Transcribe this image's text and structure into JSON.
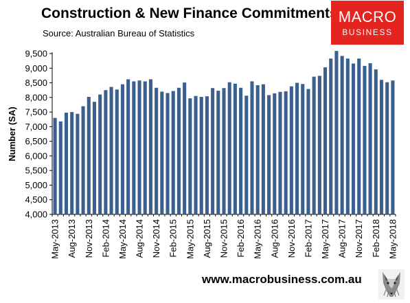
{
  "header": {
    "title": "Construction & New Finance Commitments",
    "source": "Source: Australian Bureau of Statistics"
  },
  "logo": {
    "line1": "MACRO",
    "line2": "BUSINESS"
  },
  "footer": {
    "url": "www.macrobusiness.com.au"
  },
  "colors": {
    "bar": "#3b5f8e",
    "logo_bg": "#e3241f"
  },
  "chart_data": {
    "type": "bar",
    "title": "Construction & New Finance Commitments",
    "ylabel": "Number (SA)",
    "xlabel": "",
    "ylim": [
      4000,
      9500
    ],
    "yticks": [
      4000,
      4500,
      5000,
      5500,
      6000,
      6500,
      7000,
      7500,
      8000,
      8500,
      9000,
      9500
    ],
    "ytick_labels": [
      "4,000",
      "4,500",
      "5,000",
      "5,500",
      "6,000",
      "6,500",
      "7,000",
      "7,500",
      "8,000",
      "8,500",
      "9,000",
      "9,500"
    ],
    "grid": false,
    "categories": [
      "May-2013",
      "Jun-2013",
      "Jul-2013",
      "Aug-2013",
      "Sep-2013",
      "Oct-2013",
      "Nov-2013",
      "Dec-2013",
      "Jan-2014",
      "Feb-2014",
      "Mar-2014",
      "Apr-2014",
      "May-2014",
      "Jun-2014",
      "Jul-2014",
      "Aug-2014",
      "Sep-2014",
      "Oct-2014",
      "Nov-2014",
      "Dec-2014",
      "Jan-2015",
      "Feb-2015",
      "Mar-2015",
      "Apr-2015",
      "May-2015",
      "Jun-2015",
      "Jul-2015",
      "Aug-2015",
      "Sep-2015",
      "Oct-2015",
      "Nov-2015",
      "Dec-2015",
      "Jan-2016",
      "Feb-2016",
      "Mar-2016",
      "Apr-2016",
      "May-2016",
      "Jun-2016",
      "Jul-2016",
      "Aug-2016",
      "Sep-2016",
      "Oct-2016",
      "Nov-2016",
      "Dec-2016",
      "Jan-2017",
      "Feb-2017",
      "Mar-2017",
      "Apr-2017",
      "May-2017",
      "Jun-2017",
      "Jul-2017",
      "Aug-2017",
      "Sep-2017",
      "Oct-2017",
      "Nov-2017",
      "Dec-2017",
      "Jan-2018",
      "Feb-2018",
      "Mar-2018",
      "Apr-2018",
      "May-2018"
    ],
    "xtick_labels": [
      "May-2013",
      "Aug-2013",
      "Nov-2013",
      "Feb-2014",
      "May-2014",
      "Aug-2014",
      "Nov-2014",
      "Feb-2015",
      "May-2015",
      "Aug-2015",
      "Nov-2015",
      "Feb-2016",
      "May-2016",
      "Aug-2016",
      "Nov-2016",
      "Feb-2017",
      "May-2017",
      "Aug-2017",
      "Nov-2017",
      "Feb-2018",
      "May-2018"
    ],
    "series": [
      {
        "values": [
          7300,
          7180,
          7480,
          7500,
          7440,
          7700,
          8020,
          7850,
          8100,
          8250,
          8360,
          8270,
          8450,
          8620,
          8550,
          8580,
          8550,
          8620,
          8330,
          8200,
          8150,
          8220,
          8330,
          8510,
          7970,
          8050,
          8020,
          8040,
          8320,
          8230,
          8320,
          8520,
          8470,
          8330,
          8060,
          8550,
          8420,
          8450,
          8080,
          8140,
          8190,
          8210,
          8380,
          8500,
          8460,
          8290,
          8710,
          8740,
          9030,
          9330,
          9590,
          9420,
          9330,
          9160,
          9330,
          9080,
          9170,
          8960,
          8600,
          8520,
          8580
        ]
      }
    ]
  }
}
